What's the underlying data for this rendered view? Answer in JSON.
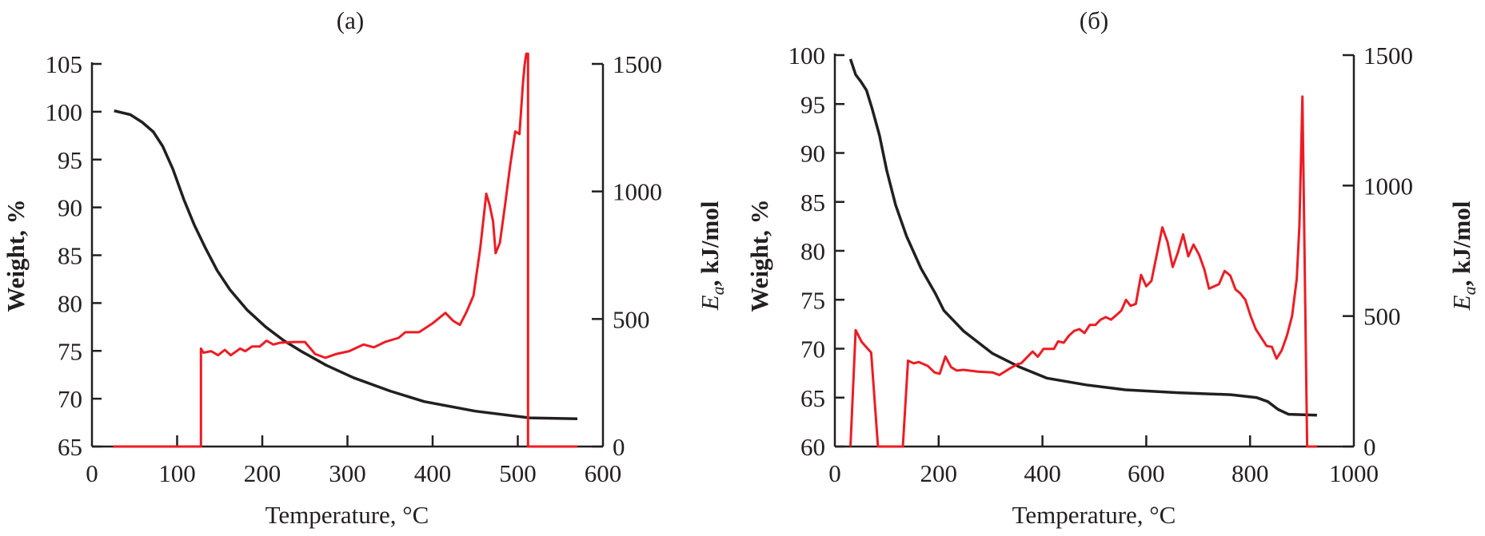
{
  "chart_data": [
    {
      "type": "line",
      "title": "(a)",
      "xlabel": "Temperature, °C",
      "ylabel": "Weight, %",
      "y2label": {
        "symbol": "E",
        "subscript": "a",
        "unit": ", kJ/mol"
      },
      "xlim": [
        0,
        600
      ],
      "ylim": [
        65,
        105
      ],
      "y2lim": [
        0,
        1500
      ],
      "xticks": [
        0,
        100,
        200,
        300,
        400,
        500,
        600
      ],
      "yticks": [
        65,
        70,
        75,
        80,
        85,
        90,
        95,
        100,
        105
      ],
      "y2ticks": [
        0,
        500,
        1000,
        1500
      ],
      "grid": false,
      "colors": {
        "weight": "#231f20",
        "ea": "#ed1c24"
      },
      "series": [
        {
          "axis": "left",
          "color": "#231f20",
          "x": [
            26,
            45,
            59,
            72,
            83,
            95,
            108,
            120,
            133,
            147,
            162,
            182,
            204,
            225,
            245,
            275,
            307,
            350,
            390,
            450,
            514,
            570
          ],
          "y": [
            100.1,
            99.7,
            98.9,
            97.9,
            96.4,
            94,
            90.8,
            88.2,
            85.8,
            83.4,
            81.4,
            79.3,
            77.5,
            76.1,
            75,
            73.5,
            72.2,
            70.8,
            69.7,
            68.7,
            68,
            67.9
          ]
        },
        {
          "axis": "right",
          "color": "#ed1c24",
          "x": [
            25,
            128,
            128,
            131,
            140,
            148,
            156,
            163,
            174,
            180,
            188,
            197,
            205,
            213,
            221,
            238,
            250,
            262,
            274,
            287,
            302,
            319,
            331,
            344,
            360,
            368,
            384,
            400,
            415,
            424,
            432,
            440,
            448,
            456,
            463,
            467,
            471,
            474,
            479,
            485,
            491,
            497,
            502,
            506,
            508,
            510,
            512,
            512,
            515,
            570
          ],
          "y": [
            0,
            0,
            384,
            368,
            374,
            358,
            379,
            358,
            384,
            374,
            392,
            392,
            415,
            400,
            407,
            410,
            410,
            363,
            348,
            363,
            374,
            400,
            389,
            410,
            426,
            448,
            448,
            483,
            524,
            493,
            477,
            529,
            592,
            779,
            991,
            945,
            882,
            758,
            799,
            945,
            1100,
            1235,
            1225,
            1422,
            1495,
            1540,
            1540,
            0,
            0,
            0
          ]
        }
      ]
    },
    {
      "type": "line",
      "title": "(б)",
      "xlabel": "Temperature, °C",
      "ylabel": "Weight, %",
      "y2label": {
        "symbol": "E",
        "subscript": "a",
        "unit": ", kJ/mol"
      },
      "xlim": [
        0,
        1000
      ],
      "ylim": [
        60,
        100
      ],
      "y2lim": [
        0,
        1500
      ],
      "xticks": [
        0,
        200,
        400,
        600,
        800,
        1000
      ],
      "yticks": [
        60,
        65,
        70,
        75,
        80,
        85,
        90,
        95,
        100
      ],
      "y2ticks": [
        0,
        500,
        1000,
        1500
      ],
      "grid": false,
      "colors": {
        "weight": "#231f20",
        "ea": "#ed1c24"
      },
      "series": [
        {
          "axis": "left",
          "color": "#231f20",
          "x": [
            30,
            40,
            50,
            61,
            72,
            86,
            100,
            117,
            138,
            166,
            193,
            210,
            248,
            304,
            357,
            408,
            484,
            560,
            661,
            763,
            813,
            834,
            854,
            874,
            929
          ],
          "y": [
            99.6,
            98,
            97.3,
            96.4,
            94.5,
            91.8,
            88.2,
            84.7,
            81.5,
            78.2,
            75.7,
            73.9,
            71.8,
            69.5,
            68.1,
            67,
            66.3,
            65.8,
            65.5,
            65.3,
            65,
            64.6,
            63.8,
            63.3,
            63.2
          ]
        },
        {
          "axis": "right",
          "color": "#ed1c24",
          "x": [
            30,
            40,
            52,
            70,
            83,
            131,
            141,
            152,
            162,
            179,
            192,
            202,
            213,
            224,
            235,
            248,
            276,
            304,
            317,
            337,
            352,
            359,
            381,
            391,
            402,
            422,
            430,
            441,
            451,
            461,
            471,
            481,
            491,
            502,
            512,
            522,
            532,
            542,
            552,
            561,
            570,
            580,
            590,
            600,
            610,
            631,
            641,
            651,
            661,
            671,
            681,
            691,
            702,
            712,
            721,
            740,
            751,
            762,
            772,
            781,
            791,
            801,
            811,
            832,
            842,
            851,
            861,
            871,
            881,
            890,
            895,
            901,
            910,
            929
          ],
          "y": [
            0,
            446,
            400,
            360,
            0,
            0,
            329,
            319,
            324,
            309,
            284,
            279,
            345,
            304,
            291,
            294,
            287,
            284,
            274,
            299,
            316,
            319,
            364,
            344,
            374,
            374,
            403,
            398,
            425,
            443,
            450,
            435,
            466,
            466,
            486,
            496,
            486,
            503,
            521,
            562,
            539,
            547,
            658,
            614,
            635,
            840,
            784,
            688,
            744,
            813,
            729,
            774,
            734,
            678,
            605,
            622,
            673,
            655,
            602,
            587,
            562,
            501,
            450,
            385,
            382,
            337,
            369,
            425,
            501,
            643,
            845,
            1341,
            0,
            0
          ]
        }
      ]
    }
  ]
}
